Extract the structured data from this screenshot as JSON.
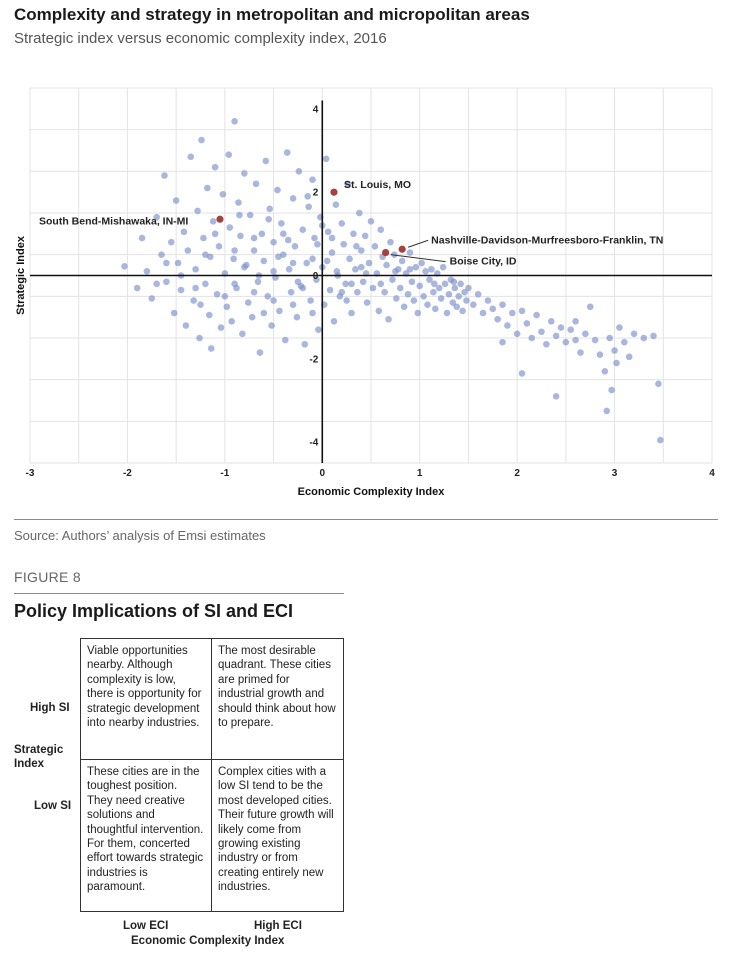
{
  "header": {
    "title": "Complexity and strategy in metropolitan and micropolitan areas",
    "subtitle": "Strategic index versus economic complexity index, 2016"
  },
  "chart_data": {
    "type": "scatter",
    "title": "Complexity and strategy in metropolitan and micropolitan areas",
    "subtitle": "Strategic index versus economic complexity index, 2016",
    "xlabel": "Economic Complexity Index",
    "ylabel": "Strategic Index",
    "xlim": [
      -3,
      4
    ],
    "ylim": [
      -4.5,
      4.5
    ],
    "x_ticks": [
      -3,
      -2,
      -1,
      0,
      1,
      2,
      3,
      4
    ],
    "y_ticks": [
      -4,
      -2,
      2,
      4
    ],
    "y_zero_label": "0",
    "grid": true,
    "point_color": "#7b8fcb",
    "highlight_color": "#a4423f",
    "highlighted": [
      {
        "label": "St. Louis, MO",
        "x": 0.12,
        "y": 2.0
      },
      {
        "label": "South Bend-Mishawaka, IN-MI",
        "x": -1.05,
        "y": 1.35
      },
      {
        "label": "Nashville-Davidson-Murfreesboro-Franklin, TN",
        "x": 0.82,
        "y": 0.63
      },
      {
        "label": "Boise City, ID",
        "x": 0.65,
        "y": 0.55
      }
    ],
    "points": [
      [
        -2.03,
        0.22
      ],
      [
        -1.9,
        -0.3
      ],
      [
        -1.85,
        0.9
      ],
      [
        -1.8,
        0.1
      ],
      [
        -1.75,
        -0.55
      ],
      [
        -1.7,
        1.4
      ],
      [
        -1.65,
        0.5
      ],
      [
        -1.62,
        2.4
      ],
      [
        -1.6,
        -0.15
      ],
      [
        -1.55,
        0.8
      ],
      [
        -1.52,
        -0.9
      ],
      [
        -1.5,
        1.8
      ],
      [
        -1.48,
        0.3
      ],
      [
        -1.45,
        -0.35
      ],
      [
        -1.42,
        1.05
      ],
      [
        -1.4,
        -1.2
      ],
      [
        -1.38,
        0.6
      ],
      [
        -1.35,
        2.85
      ],
      [
        -1.32,
        -0.6
      ],
      [
        -1.3,
        0.15
      ],
      [
        -1.28,
        1.55
      ],
      [
        -1.26,
        -1.5
      ],
      [
        -1.24,
        3.25
      ],
      [
        -1.22,
        0.9
      ],
      [
        -1.2,
        -0.2
      ],
      [
        -1.18,
        2.1
      ],
      [
        -1.16,
        -0.95
      ],
      [
        -1.15,
        0.45
      ],
      [
        -1.14,
        -1.75
      ],
      [
        -1.12,
        1.3
      ],
      [
        -1.1,
        2.6
      ],
      [
        -1.08,
        -0.45
      ],
      [
        -1.06,
        0.7
      ],
      [
        -1.04,
        -1.25
      ],
      [
        -1.02,
        1.95
      ],
      [
        -1.0,
        0.05
      ],
      [
        -0.98,
        -0.75
      ],
      [
        -0.96,
        2.9
      ],
      [
        -0.95,
        1.15
      ],
      [
        -0.93,
        -1.1
      ],
      [
        -0.91,
        0.4
      ],
      [
        -0.9,
        3.7
      ],
      [
        -0.88,
        -0.3
      ],
      [
        -0.86,
        1.75
      ],
      [
        -0.84,
        0.95
      ],
      [
        -0.82,
        -1.4
      ],
      [
        -0.8,
        2.45
      ],
      [
        -0.78,
        0.25
      ],
      [
        -0.76,
        -0.65
      ],
      [
        -0.74,
        1.45
      ],
      [
        -0.72,
        -1.0
      ],
      [
        -0.7,
        0.6
      ],
      [
        -0.68,
        2.2
      ],
      [
        -0.66,
        -0.15
      ],
      [
        -0.64,
        -1.85
      ],
      [
        -0.62,
        1.0
      ],
      [
        -0.6,
        0.35
      ],
      [
        -0.58,
        2.75
      ],
      [
        -0.56,
        -0.5
      ],
      [
        -0.54,
        1.6
      ],
      [
        -0.52,
        -1.2
      ],
      [
        -0.5,
        0.8
      ],
      [
        -0.48,
        -0.05
      ],
      [
        -0.46,
        2.05
      ],
      [
        -0.44,
        -0.85
      ],
      [
        -0.42,
        1.25
      ],
      [
        -0.4,
        0.5
      ],
      [
        -0.38,
        -1.55
      ],
      [
        -0.36,
        2.95
      ],
      [
        -0.34,
        0.15
      ],
      [
        -0.32,
        -0.4
      ],
      [
        -0.3,
        1.85
      ],
      [
        -0.28,
        0.7
      ],
      [
        -0.26,
        -1.0
      ],
      [
        -0.24,
        2.5
      ],
      [
        -0.22,
        -0.25
      ],
      [
        -0.2,
        1.1
      ],
      [
        -0.18,
        -1.65
      ],
      [
        -0.16,
        0.3
      ],
      [
        -0.14,
        1.65
      ],
      [
        -0.12,
        -0.6
      ],
      [
        -0.1,
        2.3
      ],
      [
        -0.08,
        0.9
      ],
      [
        -0.06,
        -0.1
      ],
      [
        -0.04,
        -1.3
      ],
      [
        -0.02,
        1.4
      ],
      [
        0.0,
        0.2
      ],
      [
        0.02,
        -0.7
      ],
      [
        0.04,
        2.8
      ],
      [
        0.06,
        1.05
      ],
      [
        0.08,
        -0.35
      ],
      [
        0.1,
        0.55
      ],
      [
        0.12,
        -1.1
      ],
      [
        0.14,
        1.7
      ],
      [
        0.16,
        0.0
      ],
      [
        0.18,
        -0.5
      ],
      [
        0.2,
        1.25
      ],
      [
        0.22,
        0.75
      ],
      [
        0.24,
        -0.2
      ],
      [
        0.26,
        2.2
      ],
      [
        0.28,
        0.4
      ],
      [
        0.3,
        -0.9
      ],
      [
        0.32,
        1.0
      ],
      [
        0.34,
        0.15
      ],
      [
        0.36,
        -0.4
      ],
      [
        0.38,
        1.5
      ],
      [
        0.4,
        0.6
      ],
      [
        0.42,
        -0.15
      ],
      [
        0.44,
        0.95
      ],
      [
        0.46,
        -0.65
      ],
      [
        0.48,
        0.3
      ],
      [
        0.5,
        1.3
      ],
      [
        0.52,
        -0.3
      ],
      [
        0.54,
        0.7
      ],
      [
        0.56,
        0.05
      ],
      [
        0.58,
        -0.85
      ],
      [
        0.6,
        1.1
      ],
      [
        0.62,
        0.45
      ],
      [
        0.64,
        -0.4
      ],
      [
        0.66,
        0.25
      ],
      [
        0.68,
        -1.05
      ],
      [
        0.7,
        0.8
      ],
      [
        0.72,
        -0.1
      ],
      [
        0.74,
        0.5
      ],
      [
        0.76,
        -0.55
      ],
      [
        0.78,
        0.15
      ],
      [
        0.8,
        -0.3
      ],
      [
        0.82,
        0.35
      ],
      [
        0.84,
        -0.75
      ],
      [
        0.86,
        0.05
      ],
      [
        0.88,
        -0.45
      ],
      [
        0.9,
        0.55
      ],
      [
        0.92,
        -0.15
      ],
      [
        0.94,
        -0.6
      ],
      [
        0.96,
        0.2
      ],
      [
        0.98,
        -0.9
      ],
      [
        1.0,
        -0.25
      ],
      [
        1.02,
        0.3
      ],
      [
        1.04,
        -0.5
      ],
      [
        1.06,
        0.1
      ],
      [
        1.08,
        -0.7
      ],
      [
        1.1,
        -0.1
      ],
      [
        1.12,
        0.15
      ],
      [
        1.14,
        -0.4
      ],
      [
        1.16,
        -0.8
      ],
      [
        1.18,
        0.05
      ],
      [
        1.2,
        -0.3
      ],
      [
        1.22,
        -0.55
      ],
      [
        1.24,
        0.2
      ],
      [
        1.26,
        -0.2
      ],
      [
        1.28,
        -0.9
      ],
      [
        1.3,
        -0.45
      ],
      [
        1.32,
        -0.1
      ],
      [
        1.34,
        -0.65
      ],
      [
        1.36,
        -0.3
      ],
      [
        1.38,
        -0.75
      ],
      [
        1.4,
        -0.5
      ],
      [
        1.42,
        -0.2
      ],
      [
        1.44,
        -0.85
      ],
      [
        1.46,
        -0.4
      ],
      [
        1.48,
        -0.6
      ],
      [
        1.5,
        -0.3
      ],
      [
        1.55,
        -0.7
      ],
      [
        1.6,
        -0.45
      ],
      [
        1.65,
        -0.9
      ],
      [
        1.7,
        -0.6
      ],
      [
        1.75,
        -0.8
      ],
      [
        1.8,
        -1.05
      ],
      [
        1.85,
        -0.7
      ],
      [
        1.9,
        -1.2
      ],
      [
        1.95,
        -0.9
      ],
      [
        2.0,
        -1.4
      ],
      [
        2.05,
        -0.85
      ],
      [
        2.1,
        -1.15
      ],
      [
        2.15,
        -1.5
      ],
      [
        2.2,
        -0.95
      ],
      [
        2.25,
        -1.35
      ],
      [
        2.3,
        -1.65
      ],
      [
        2.35,
        -1.1
      ],
      [
        2.4,
        -1.45
      ],
      [
        2.45,
        -1.25
      ],
      [
        2.5,
        -1.6
      ],
      [
        2.55,
        -1.3
      ],
      [
        2.6,
        -1.55
      ],
      [
        2.65,
        -1.85
      ],
      [
        2.7,
        -1.4
      ],
      [
        2.75,
        -0.75
      ],
      [
        2.8,
        -1.55
      ],
      [
        2.85,
        -1.9
      ],
      [
        2.9,
        -2.3
      ],
      [
        2.92,
        -3.25
      ],
      [
        2.95,
        -1.5
      ],
      [
        2.97,
        -2.75
      ],
      [
        3.0,
        -1.8
      ],
      [
        3.02,
        -2.1
      ],
      [
        3.05,
        -1.25
      ],
      [
        3.1,
        -1.6
      ],
      [
        3.15,
        -1.95
      ],
      [
        3.2,
        -1.4
      ],
      [
        3.3,
        -1.5
      ],
      [
        3.4,
        -1.45
      ],
      [
        3.45,
        -2.6
      ],
      [
        3.47,
        -3.95
      ],
      [
        2.05,
        -2.35
      ],
      [
        2.4,
        -2.9
      ],
      [
        1.85,
        -1.6
      ],
      [
        2.6,
        -1.1
      ],
      [
        -0.9,
        0.6
      ],
      [
        -0.7,
        -0.4
      ],
      [
        -0.5,
        0.1
      ],
      [
        -0.3,
        -0.7
      ],
      [
        -0.1,
        0.4
      ],
      [
        0.1,
        0.9
      ],
      [
        0.3,
        -0.2
      ],
      [
        -1.2,
        0.5
      ],
      [
        -1.0,
        -0.5
      ],
      [
        -0.8,
        0.2
      ],
      [
        -0.6,
        -0.9
      ],
      [
        -0.4,
        1.0
      ],
      [
        -0.2,
        -0.3
      ],
      [
        0.0,
        1.2
      ],
      [
        0.2,
        -0.4
      ],
      [
        0.4,
        0.2
      ],
      [
        -1.3,
        -0.3
      ],
      [
        -1.1,
        1.0
      ],
      [
        -0.9,
        -0.2
      ],
      [
        -0.7,
        0.9
      ],
      [
        -0.5,
        -0.6
      ],
      [
        -0.3,
        0.3
      ],
      [
        -0.1,
        -0.9
      ],
      [
        0.15,
        0.1
      ],
      [
        0.35,
        0.7
      ],
      [
        -0.65,
        0.0
      ],
      [
        -0.45,
        0.45
      ],
      [
        -0.25,
        -0.15
      ],
      [
        -0.05,
        0.75
      ],
      [
        0.25,
        -0.6
      ],
      [
        -1.45,
        0.0
      ],
      [
        -1.6,
        0.3
      ],
      [
        -1.7,
        -0.2
      ],
      [
        -1.25,
        -0.7
      ],
      [
        -0.85,
        1.45
      ],
      [
        -0.55,
        1.35
      ],
      [
        -0.35,
        0.85
      ],
      [
        -0.15,
        1.9
      ],
      [
        0.05,
        0.35
      ],
      [
        0.45,
        0.05
      ],
      [
        0.6,
        -0.2
      ],
      [
        0.75,
        0.1
      ],
      [
        0.9,
        0.15
      ],
      [
        1.15,
        -0.2
      ],
      [
        1.35,
        -0.15
      ]
    ]
  },
  "source": "Source: Authors’ analysis of Emsi estimates",
  "figure_label": "FIGURE 8",
  "policy": {
    "title": "Policy Implications of SI and ECI",
    "top_left": "Viable opportunities nearby. Although complexity is low, there is opportunity for strategic development into nearby industries.",
    "top_right": "The most desirable quadrant. These cities are primed for industrial growth and should think about how to prepare.",
    "bottom_left": "These cities are in the toughest position. They need creative solutions and thoughtful intervention. For them, concerted effort towards strategic industries is paramount.",
    "bottom_right": "Complex cities with a low SI tend to be the most developed cities. Their future growth will likely come from growing existing industry or from creating entirely new industries.",
    "high_si": "High SI",
    "low_si": "Low SI",
    "y_axis": "Strategic Index",
    "low_eci": "Low ECI",
    "high_eci": "High ECI",
    "x_axis": "Economic Complexity Index"
  }
}
